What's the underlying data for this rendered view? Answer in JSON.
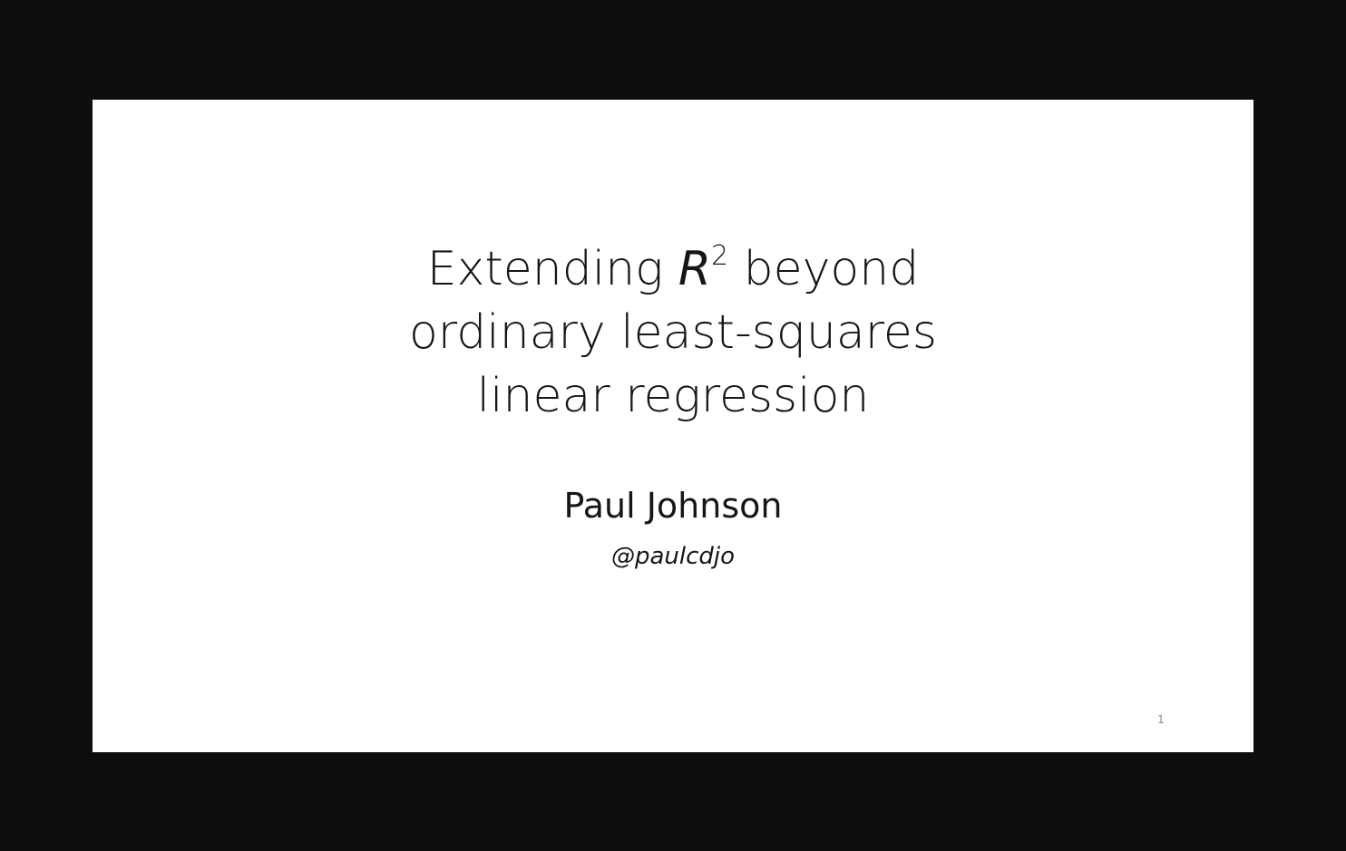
{
  "slide": {
    "title_line1_prefix": "Extending ",
    "title_line1_var": "R",
    "title_line1_sup": "2",
    "title_line1_suffix": " beyond",
    "title_line2": "ordinary least-squares",
    "title_line3": "linear regression",
    "author": "Paul Johnson",
    "handle": "@paulcdjo",
    "number": "1"
  },
  "colors": {
    "background": "#0e0e0e",
    "slide": "#ffffff",
    "text": "#161616",
    "slide_number": "#8a8a8a"
  }
}
